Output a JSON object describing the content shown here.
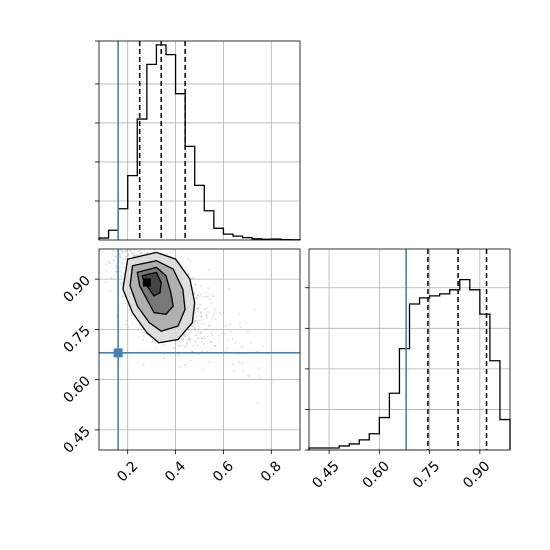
{
  "chart_data": {
    "type": "corner",
    "parameters": [
      "",
      ""
    ],
    "truths": {
      "x": 0.16,
      "y": 0.68
    },
    "truth_color": "#4682b4",
    "grid": true,
    "param_x": {
      "range": [
        0.08,
        0.92
      ],
      "ticks": [
        0.2,
        0.4,
        0.6,
        0.8
      ],
      "tick_labels": [
        "0.2",
        "0.4",
        "0.6",
        "0.8"
      ],
      "quantiles": [
        0.25,
        0.34,
        0.44
      ],
      "hist_bins": [
        0.08,
        0.12,
        0.16,
        0.2,
        0.24,
        0.28,
        0.32,
        0.36,
        0.4,
        0.44,
        0.48,
        0.52,
        0.56,
        0.6,
        0.64,
        0.68,
        0.72,
        0.76,
        0.8,
        0.84,
        0.88,
        0.92
      ],
      "hist_values": [
        1,
        5,
        16,
        33,
        62,
        90,
        100,
        95,
        75,
        48,
        28,
        15,
        6,
        3,
        2,
        1.2,
        0.6,
        0.4,
        0.5,
        0.2,
        0.1
      ]
    },
    "param_y": {
      "range": [
        0.39,
        0.99
      ],
      "ticks": [
        0.45,
        0.6,
        0.75,
        0.9
      ],
      "tick_labels": [
        "0.45",
        "0.60",
        "0.75",
        "0.90"
      ],
      "quantiles": [
        0.745,
        0.835,
        0.92
      ],
      "hist_bins": [
        0.39,
        0.42,
        0.45,
        0.48,
        0.51,
        0.54,
        0.57,
        0.6,
        0.63,
        0.66,
        0.69,
        0.72,
        0.75,
        0.78,
        0.81,
        0.84,
        0.87,
        0.9,
        0.93,
        0.96,
        0.99
      ],
      "hist_values": [
        1,
        1,
        1,
        2,
        3,
        5,
        8,
        16,
        28,
        50,
        72,
        75,
        76,
        77,
        79,
        84,
        79,
        67,
        44,
        15
      ]
    },
    "density_peak": {
      "x": 0.28,
      "y": 0.89
    },
    "contours": [
      [
        [
          0.2,
          0.96
        ],
        [
          0.32,
          0.98
        ],
        [
          0.4,
          0.96
        ],
        [
          0.46,
          0.9
        ],
        [
          0.48,
          0.83
        ],
        [
          0.47,
          0.77
        ],
        [
          0.41,
          0.72
        ],
        [
          0.33,
          0.71
        ],
        [
          0.28,
          0.74
        ],
        [
          0.22,
          0.8
        ],
        [
          0.18,
          0.87
        ]
      ],
      [
        [
          0.22,
          0.94
        ],
        [
          0.32,
          0.955
        ],
        [
          0.39,
          0.93
        ],
        [
          0.43,
          0.87
        ],
        [
          0.44,
          0.81
        ],
        [
          0.41,
          0.76
        ],
        [
          0.34,
          0.745
        ],
        [
          0.29,
          0.77
        ],
        [
          0.24,
          0.82
        ],
        [
          0.21,
          0.88
        ]
      ],
      [
        [
          0.24,
          0.92
        ],
        [
          0.32,
          0.935
        ],
        [
          0.36,
          0.91
        ],
        [
          0.38,
          0.86
        ],
        [
          0.39,
          0.82
        ],
        [
          0.36,
          0.795
        ],
        [
          0.31,
          0.8
        ],
        [
          0.28,
          0.84
        ],
        [
          0.25,
          0.88
        ]
      ],
      [
        [
          0.26,
          0.91
        ],
        [
          0.32,
          0.92
        ],
        [
          0.34,
          0.89
        ],
        [
          0.335,
          0.86
        ],
        [
          0.31,
          0.85
        ],
        [
          0.29,
          0.87
        ],
        [
          0.27,
          0.89
        ]
      ]
    ]
  }
}
